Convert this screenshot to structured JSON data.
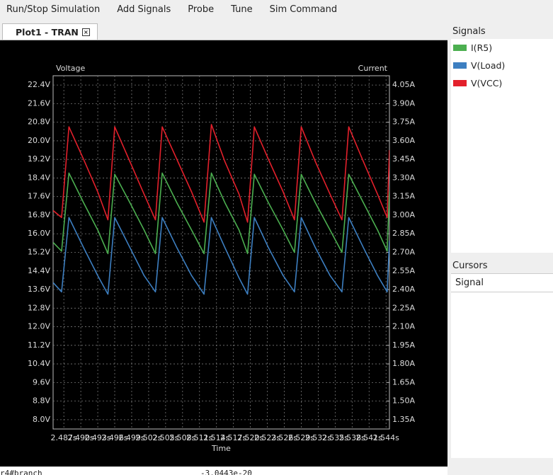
{
  "menu": [
    "Run/Stop Simulation",
    "Add Signals",
    "Probe",
    "Tune",
    "Sim Command"
  ],
  "tab": "Plot1 - TRAN",
  "panels": {
    "signals": "Signals",
    "cursors": "Cursors",
    "cursor_column": "Signal"
  },
  "console": [
    "r4#branch",
    "-3.0443e-20"
  ],
  "chart_data": {
    "type": "line",
    "x_label": "Time",
    "y_label": "Voltage",
    "y2_label": "Current",
    "grid": true,
    "xlim": [
      2.4851,
      2.5446
    ],
    "xticks": [
      {
        "value": 2.487,
        "label": "2.487s"
      },
      {
        "value": 2.49,
        "label": "2.490s"
      },
      {
        "value": 2.493,
        "label": "2.493s"
      },
      {
        "value": 2.496,
        "label": "2.496s"
      },
      {
        "value": 2.499,
        "label": "2.499s"
      },
      {
        "value": 2.502,
        "label": "2.502s"
      },
      {
        "value": 2.505,
        "label": "2.505s"
      },
      {
        "value": 2.508,
        "label": "2.508s"
      },
      {
        "value": 2.511,
        "label": "2.511s"
      },
      {
        "value": 2.514,
        "label": "2.514s"
      },
      {
        "value": 2.517,
        "label": "2.517s"
      },
      {
        "value": 2.52,
        "label": "2.520s"
      },
      {
        "value": 2.523,
        "label": "2.523s"
      },
      {
        "value": 2.526,
        "label": "2.526s"
      },
      {
        "value": 2.529,
        "label": "2.529s"
      },
      {
        "value": 2.532,
        "label": "2.532s"
      },
      {
        "value": 2.535,
        "label": "2.535s"
      },
      {
        "value": 2.538,
        "label": "2.538s"
      },
      {
        "value": 2.541,
        "label": "2.541s"
      },
      {
        "value": 2.544,
        "label": "2.544s"
      }
    ],
    "ylim": [
      7.6,
      22.8
    ],
    "yticks": [
      {
        "value": 8.0,
        "label": "8.0V"
      },
      {
        "value": 8.8,
        "label": "8.8V"
      },
      {
        "value": 9.6,
        "label": "9.6V"
      },
      {
        "value": 10.4,
        "label": "10.4V"
      },
      {
        "value": 11.2,
        "label": "11.2V"
      },
      {
        "value": 12.0,
        "label": "12.0V"
      },
      {
        "value": 12.8,
        "label": "12.8V"
      },
      {
        "value": 13.6,
        "label": "13.6V"
      },
      {
        "value": 14.4,
        "label": "14.4V"
      },
      {
        "value": 15.2,
        "label": "15.2V"
      },
      {
        "value": 16.0,
        "label": "16.0V"
      },
      {
        "value": 16.8,
        "label": "16.8V"
      },
      {
        "value": 17.6,
        "label": "17.6V"
      },
      {
        "value": 18.4,
        "label": "18.4V"
      },
      {
        "value": 19.2,
        "label": "19.2V"
      },
      {
        "value": 20.0,
        "label": "20.0V"
      },
      {
        "value": 20.8,
        "label": "20.8V"
      },
      {
        "value": 21.6,
        "label": "21.6V"
      },
      {
        "value": 22.4,
        "label": "22.4V"
      }
    ],
    "y2lim": [
      1.275,
      4.125
    ],
    "y2ticks": [
      {
        "value": 1.35,
        "label": "1.35A"
      },
      {
        "value": 1.5,
        "label": "1.50A"
      },
      {
        "value": 1.65,
        "label": "1.65A"
      },
      {
        "value": 1.8,
        "label": "1.80A"
      },
      {
        "value": 1.95,
        "label": "1.95A"
      },
      {
        "value": 2.1,
        "label": "2.10A"
      },
      {
        "value": 2.25,
        "label": "2.25A"
      },
      {
        "value": 2.4,
        "label": "2.40A"
      },
      {
        "value": 2.55,
        "label": "2.55A"
      },
      {
        "value": 2.7,
        "label": "2.70A"
      },
      {
        "value": 2.85,
        "label": "2.85A"
      },
      {
        "value": 3.0,
        "label": "3.00A"
      },
      {
        "value": 3.15,
        "label": "3.15A"
      },
      {
        "value": 3.3,
        "label": "3.30A"
      },
      {
        "value": 3.45,
        "label": "3.45A"
      },
      {
        "value": 3.6,
        "label": "3.60A"
      },
      {
        "value": 3.75,
        "label": "3.75A"
      },
      {
        "value": 3.9,
        "label": "3.90A"
      },
      {
        "value": 4.05,
        "label": "4.05A"
      }
    ],
    "x": [
      2.4851,
      2.4866,
      2.4879,
      2.4905,
      2.493,
      2.4948,
      2.496,
      2.4987,
      2.5012,
      2.5032,
      2.5044,
      2.507,
      2.5096,
      2.5118,
      2.5131,
      2.5155,
      2.518,
      2.5195,
      2.5207,
      2.5232,
      2.5258,
      2.5278,
      2.529,
      2.5315,
      2.5341,
      2.5362,
      2.5374,
      2.54,
      2.5425,
      2.5442,
      2.5446
    ],
    "series": [
      {
        "name": "I(R5)",
        "color": "#4caf50",
        "axis": "y2",
        "values": [
          2.78,
          2.71,
          3.34,
          3.1,
          2.88,
          2.69,
          3.33,
          3.1,
          2.88,
          2.69,
          3.34,
          3.1,
          2.88,
          2.69,
          3.34,
          3.1,
          2.88,
          2.69,
          3.33,
          3.1,
          2.88,
          2.7,
          3.33,
          3.1,
          2.88,
          2.7,
          3.33,
          3.1,
          2.88,
          2.71,
          3.19
        ]
      },
      {
        "name": "V(Load)",
        "color": "#3d7fc1",
        "values": [
          13.9,
          13.5,
          16.7,
          15.4,
          14.2,
          13.4,
          16.7,
          15.4,
          14.2,
          13.5,
          16.7,
          15.4,
          14.2,
          13.4,
          16.7,
          15.4,
          14.1,
          13.4,
          16.7,
          15.4,
          14.2,
          13.5,
          16.7,
          15.4,
          14.2,
          13.5,
          16.7,
          15.4,
          14.2,
          13.5,
          15.7
        ]
      },
      {
        "name": "V(VCC)",
        "color": "#e3202b",
        "values": [
          17.0,
          16.7,
          20.6,
          19.2,
          17.8,
          16.6,
          20.6,
          19.1,
          17.7,
          16.6,
          20.6,
          19.2,
          17.8,
          16.5,
          20.7,
          19.1,
          17.7,
          16.5,
          20.6,
          19.2,
          17.8,
          16.6,
          20.6,
          19.1,
          17.7,
          16.6,
          20.6,
          19.1,
          17.7,
          16.7,
          19.6
        ]
      }
    ]
  }
}
